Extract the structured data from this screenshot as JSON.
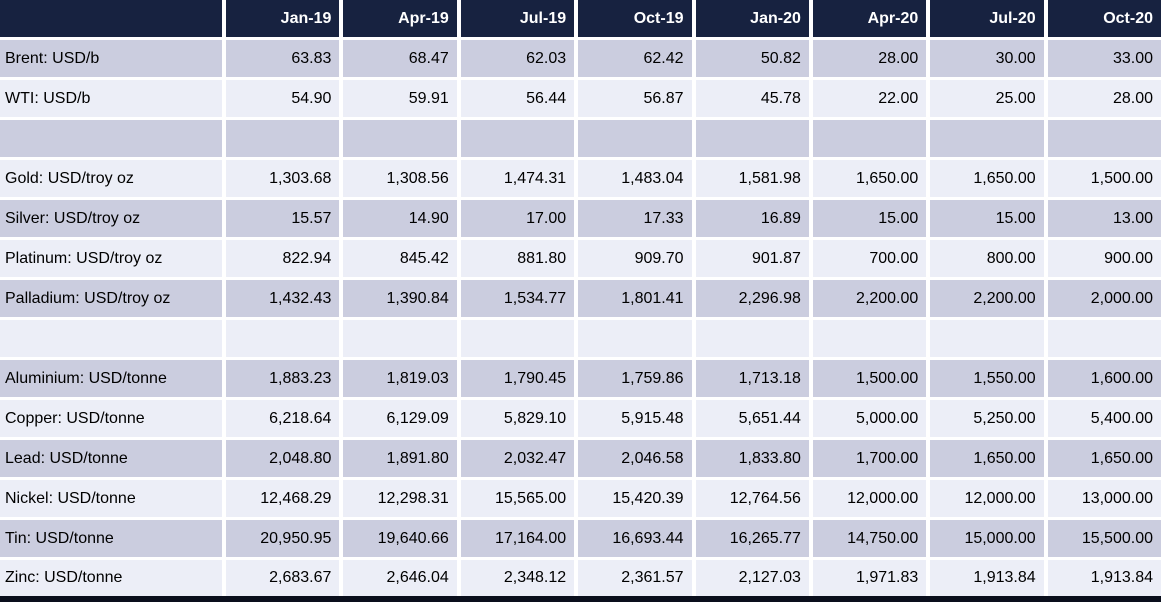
{
  "colors": {
    "header_bg": "#172240",
    "header_text": "#FFFFFF",
    "row_dark": "#CBCDDF",
    "row_light": "#ECEEF7",
    "gap": "#FFFFFF",
    "cell_text": "#000000",
    "bottom_bar": "#0A0E1C"
  },
  "table": {
    "columns": [
      "",
      "Jan-19",
      "Apr-19",
      "Jul-19",
      "Oct-19",
      "Jan-20",
      "Apr-20",
      "Jul-20",
      "Oct-20"
    ],
    "rows": [
      {
        "label": "Brent: USD/b",
        "values": [
          "63.83",
          "68.47",
          "62.03",
          "62.42",
          "50.82",
          "28.00",
          "30.00",
          "33.00"
        ]
      },
      {
        "label": "WTI: USD/b",
        "values": [
          "54.90",
          "59.91",
          "56.44",
          "56.87",
          "45.78",
          "22.00",
          "25.00",
          "28.00"
        ]
      },
      {
        "label": "",
        "values": [
          "",
          "",
          "",
          "",
          "",
          "",
          "",
          ""
        ]
      },
      {
        "label": "Gold: USD/troy oz",
        "values": [
          "1,303.68",
          "1,308.56",
          "1,474.31",
          "1,483.04",
          "1,581.98",
          "1,650.00",
          "1,650.00",
          "1,500.00"
        ]
      },
      {
        "label": "Silver: USD/troy oz",
        "values": [
          "15.57",
          "14.90",
          "17.00",
          "17.33",
          "16.89",
          "15.00",
          "15.00",
          "13.00"
        ]
      },
      {
        "label": "Platinum: USD/troy oz",
        "values": [
          "822.94",
          "845.42",
          "881.80",
          "909.70",
          "901.87",
          "700.00",
          "800.00",
          "900.00"
        ]
      },
      {
        "label": "Palladium: USD/troy oz",
        "values": [
          "1,432.43",
          "1,390.84",
          "1,534.77",
          "1,801.41",
          "2,296.98",
          "2,200.00",
          "2,200.00",
          "2,000.00"
        ]
      },
      {
        "label": "",
        "values": [
          "",
          "",
          "",
          "",
          "",
          "",
          "",
          ""
        ]
      },
      {
        "label": "Aluminium: USD/tonne",
        "values": [
          "1,883.23",
          "1,819.03",
          "1,790.45",
          "1,759.86",
          "1,713.18",
          "1,500.00",
          "1,550.00",
          "1,600.00"
        ]
      },
      {
        "label": "Copper: USD/tonne",
        "values": [
          "6,218.64",
          "6,129.09",
          "5,829.10",
          "5,915.48",
          "5,651.44",
          "5,000.00",
          "5,250.00",
          "5,400.00"
        ]
      },
      {
        "label": "Lead: USD/tonne",
        "values": [
          "2,048.80",
          "1,891.80",
          "2,032.47",
          "2,046.58",
          "1,833.80",
          "1,700.00",
          "1,650.00",
          "1,650.00"
        ]
      },
      {
        "label": "Nickel: USD/tonne",
        "values": [
          "12,468.29",
          "12,298.31",
          "15,565.00",
          "15,420.39",
          "12,764.56",
          "12,000.00",
          "12,000.00",
          "13,000.00"
        ]
      },
      {
        "label": "Tin: USD/tonne",
        "values": [
          "20,950.95",
          "19,640.66",
          "17,164.00",
          "16,693.44",
          "16,265.77",
          "14,750.00",
          "15,000.00",
          "15,500.00"
        ]
      },
      {
        "label": "Zinc: USD/tonne",
        "values": [
          "2,683.67",
          "2,646.04",
          "2,348.12",
          "2,361.57",
          "2,127.03",
          "1,971.83",
          "1,913.84",
          "1,913.84"
        ]
      }
    ]
  },
  "chart_data": {
    "type": "table",
    "title": "",
    "categories": [
      "Jan-19",
      "Apr-19",
      "Jul-19",
      "Oct-19",
      "Jan-20",
      "Apr-20",
      "Jul-20",
      "Oct-20"
    ],
    "series": [
      {
        "name": "Brent: USD/b",
        "values": [
          63.83,
          68.47,
          62.03,
          62.42,
          50.82,
          28.0,
          30.0,
          33.0
        ]
      },
      {
        "name": "WTI: USD/b",
        "values": [
          54.9,
          59.91,
          56.44,
          56.87,
          45.78,
          22.0,
          25.0,
          28.0
        ]
      },
      {
        "name": "Gold: USD/troy oz",
        "values": [
          1303.68,
          1308.56,
          1474.31,
          1483.04,
          1581.98,
          1650.0,
          1650.0,
          1500.0
        ]
      },
      {
        "name": "Silver: USD/troy oz",
        "values": [
          15.57,
          14.9,
          17.0,
          17.33,
          16.89,
          15.0,
          15.0,
          13.0
        ]
      },
      {
        "name": "Platinum: USD/troy oz",
        "values": [
          822.94,
          845.42,
          881.8,
          909.7,
          901.87,
          700.0,
          800.0,
          900.0
        ]
      },
      {
        "name": "Palladium: USD/troy oz",
        "values": [
          1432.43,
          1390.84,
          1534.77,
          1801.41,
          2296.98,
          2200.0,
          2200.0,
          2000.0
        ]
      },
      {
        "name": "Aluminium: USD/tonne",
        "values": [
          1883.23,
          1819.03,
          1790.45,
          1759.86,
          1713.18,
          1500.0,
          1550.0,
          1600.0
        ]
      },
      {
        "name": "Copper: USD/tonne",
        "values": [
          6218.64,
          6129.09,
          5829.1,
          5915.48,
          5651.44,
          5000.0,
          5250.0,
          5400.0
        ]
      },
      {
        "name": "Lead: USD/tonne",
        "values": [
          2048.8,
          1891.8,
          2032.47,
          2046.58,
          1833.8,
          1700.0,
          1650.0,
          1650.0
        ]
      },
      {
        "name": "Nickel: USD/tonne",
        "values": [
          12468.29,
          12298.31,
          15565.0,
          15420.39,
          12764.56,
          12000.0,
          12000.0,
          13000.0
        ]
      },
      {
        "name": "Tin: USD/tonne",
        "values": [
          20950.95,
          19640.66,
          17164.0,
          16693.44,
          16265.77,
          14750.0,
          15000.0,
          15500.0
        ]
      },
      {
        "name": "Zinc: USD/tonne",
        "values": [
          2683.67,
          2646.04,
          2348.12,
          2361.57,
          2127.03,
          1971.83,
          1913.84,
          1913.84
        ]
      }
    ]
  }
}
